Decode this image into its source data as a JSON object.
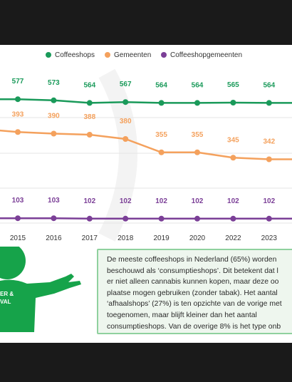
{
  "legend": [
    {
      "label": "Coffeeshops",
      "color": "#1a9a5a"
    },
    {
      "label": "Gemeenten",
      "color": "#f4a15d"
    },
    {
      "label": "Coffeeshopgemeenten",
      "color": "#7b3f97"
    }
  ],
  "chart_data": {
    "type": "line",
    "x": [
      "2015",
      "2016",
      "2017",
      "2018",
      "2019",
      "2020",
      "2022",
      "2023"
    ],
    "series": [
      {
        "name": "Coffeeshops",
        "color": "#1a9a5a",
        "values": [
          577,
          573,
          564,
          567,
          564,
          564,
          565,
          564
        ],
        "labels": [
          "577",
          "573",
          "564",
          "567",
          "564",
          "564",
          "565",
          "564"
        ]
      },
      {
        "name": "Gemeenten",
        "color": "#f4a15d",
        "values": [
          393,
          390,
          388,
          380,
          355,
          355,
          345,
          342
        ],
        "labels": [
          "393",
          "390",
          "388",
          "380",
          "355",
          "355",
          "345",
          "342"
        ]
      },
      {
        "name": "Coffeeshopgemeenten",
        "color": "#7b3f97",
        "values": [
          103,
          103,
          102,
          102,
          102,
          102,
          102,
          102
        ],
        "labels": [
          "103",
          "103",
          "102",
          "102",
          "102",
          "102",
          "102",
          "102"
        ]
      }
    ],
    "grid": true,
    "legend_position": "top"
  },
  "mascot": {
    "text_line1": "ER &",
    "text_line2": "VAL"
  },
  "callout": {
    "text": "De meeste coffeeshops in Nederland (65%) worden\nbeschouwd als ‘consumptieshops’. Dit betekent dat l\ner niet alleen cannabis kunnen kopen, maar deze oo\nplaatse mogen gebruiken (zonder tabak). Het aantal\n‘afhaalshops’ (27%) is ten opzichte van de vorige met\ntoegenomen, maar blijft kleiner dan het aantal\nconsumptieshops. Van de overige 8% is het type onb"
  }
}
